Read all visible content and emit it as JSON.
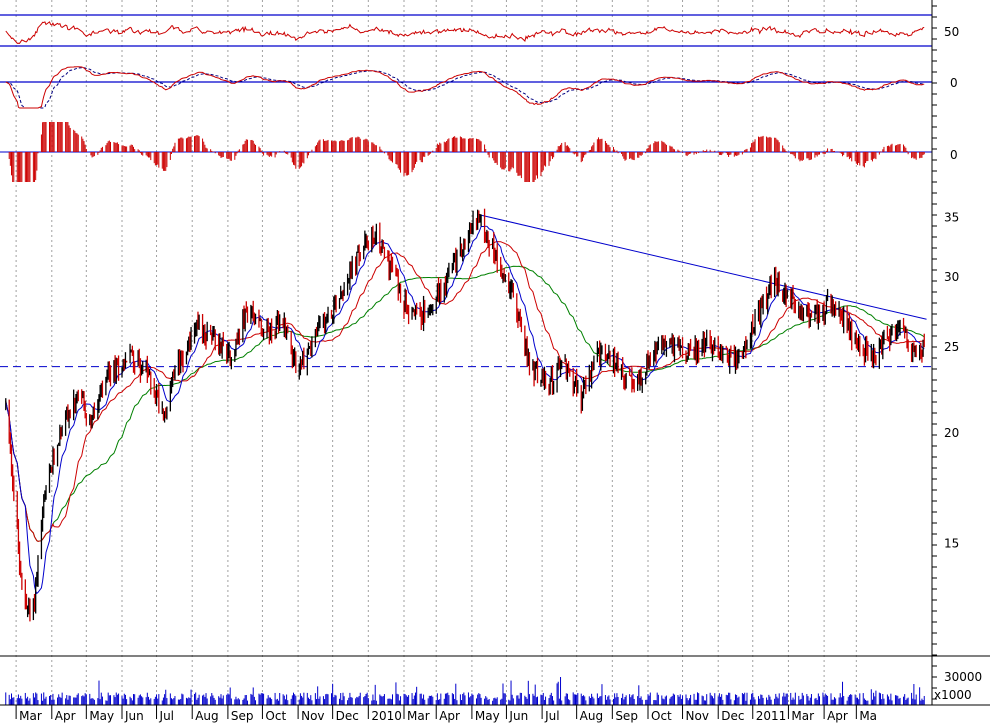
{
  "chart_data": {
    "type": "stock-chart",
    "x_axis": {
      "months": [
        "Mar",
        "Apr",
        "May",
        "Jun",
        "Jul",
        "Aug",
        "Sep",
        "Oct",
        "Nov",
        "Dec",
        "2010",
        "Mar",
        "Apr",
        "May",
        "Jun",
        "Jul",
        "Aug",
        "Sep",
        "Oct",
        "Nov",
        "Dec",
        "2011",
        "Mar",
        "Apr",
        "Ma"
      ],
      "range": [
        "2009-03",
        "2011-05"
      ]
    },
    "panels": [
      {
        "name": "oscillator",
        "tick_labels": [
          "50"
        ],
        "ylim": [
          0,
          100
        ],
        "reference_lines": [
          30,
          70
        ],
        "color": "#cc0000"
      },
      {
        "name": "macd",
        "tick_labels": [
          "0"
        ],
        "reference_lines": [
          0
        ],
        "series_colors": [
          "#cc0000",
          "#000080"
        ]
      },
      {
        "name": "histogram",
        "tick_labels": [
          "0"
        ],
        "reference_lines": [
          0
        ],
        "color": "#cc0000"
      },
      {
        "name": "price",
        "tick_labels": [
          "35",
          "30",
          "25",
          "20",
          "15"
        ],
        "scale": "log",
        "ylim": [
          11.2,
          37.5
        ],
        "support_level": 23.7,
        "trendline": {
          "from": {
            "date": "2010-04-06",
            "value": 35.2
          },
          "to": {
            "date": "2011-05-01",
            "value": 26.8
          }
        },
        "series_colors": {
          "price": "#cc0000",
          "ma_short": "#0000cc",
          "ma_mid": "#cc0000",
          "ma_long": "#008000"
        }
      },
      {
        "name": "volume",
        "tick_labels": [
          "30000"
        ],
        "unit_label": "x1000",
        "color": "#0000cc"
      }
    ],
    "price_path": [
      [
        "2009-02-20",
        21.5
      ],
      [
        "2009-03-05",
        13.5
      ],
      [
        "2009-03-15",
        12.2
      ],
      [
        "2009-03-25",
        16.5
      ],
      [
        "2009-04-10",
        20.5
      ],
      [
        "2009-04-25",
        21.8
      ],
      [
        "2009-05-05",
        20.5
      ],
      [
        "2009-05-20",
        23.0
      ],
      [
        "2009-06-10",
        24.5
      ],
      [
        "2009-06-25",
        23.0
      ],
      [
        "2009-07-08",
        21.0
      ],
      [
        "2009-07-20",
        24.0
      ],
      [
        "2009-08-05",
        26.2
      ],
      [
        "2009-08-20",
        25.5
      ],
      [
        "2009-09-05",
        24.5
      ],
      [
        "2009-09-18",
        27.5
      ],
      [
        "2009-10-05",
        26.0
      ],
      [
        "2009-10-20",
        26.5
      ],
      [
        "2009-11-01",
        23.5
      ],
      [
        "2009-11-15",
        25.5
      ],
      [
        "2009-12-01",
        27.5
      ],
      [
        "2009-12-20",
        31.0
      ],
      [
        "2010-01-05",
        33.5
      ],
      [
        "2010-01-20",
        31.0
      ],
      [
        "2010-02-01",
        28.0
      ],
      [
        "2010-02-15",
        27.0
      ],
      [
        "2010-03-05",
        29.0
      ],
      [
        "2010-03-20",
        31.5
      ],
      [
        "2010-04-06",
        35.0
      ],
      [
        "2010-04-20",
        32.0
      ],
      [
        "2010-05-05",
        29.0
      ],
      [
        "2010-05-20",
        24.0
      ],
      [
        "2010-06-05",
        22.5
      ],
      [
        "2010-06-20",
        24.0
      ],
      [
        "2010-07-05",
        21.8
      ],
      [
        "2010-07-20",
        24.5
      ],
      [
        "2010-08-05",
        24.0
      ],
      [
        "2010-08-20",
        22.3
      ],
      [
        "2010-09-05",
        24.5
      ],
      [
        "2010-09-20",
        25.3
      ],
      [
        "2010-10-05",
        24.3
      ],
      [
        "2010-10-20",
        25.2
      ],
      [
        "2010-11-05",
        24.6
      ],
      [
        "2010-11-20",
        24.0
      ],
      [
        "2010-12-05",
        27.0
      ],
      [
        "2010-12-20",
        29.5
      ],
      [
        "2011-01-05",
        28.0
      ],
      [
        "2011-01-20",
        27.0
      ],
      [
        "2011-02-05",
        27.8
      ],
      [
        "2011-02-20",
        26.5
      ],
      [
        "2011-03-05",
        25.0
      ],
      [
        "2011-03-15",
        24.0
      ],
      [
        "2011-03-28",
        25.5
      ],
      [
        "2011-04-10",
        26.3
      ],
      [
        "2011-04-20",
        24.5
      ],
      [
        "2011-05-01",
        24.8
      ]
    ]
  }
}
